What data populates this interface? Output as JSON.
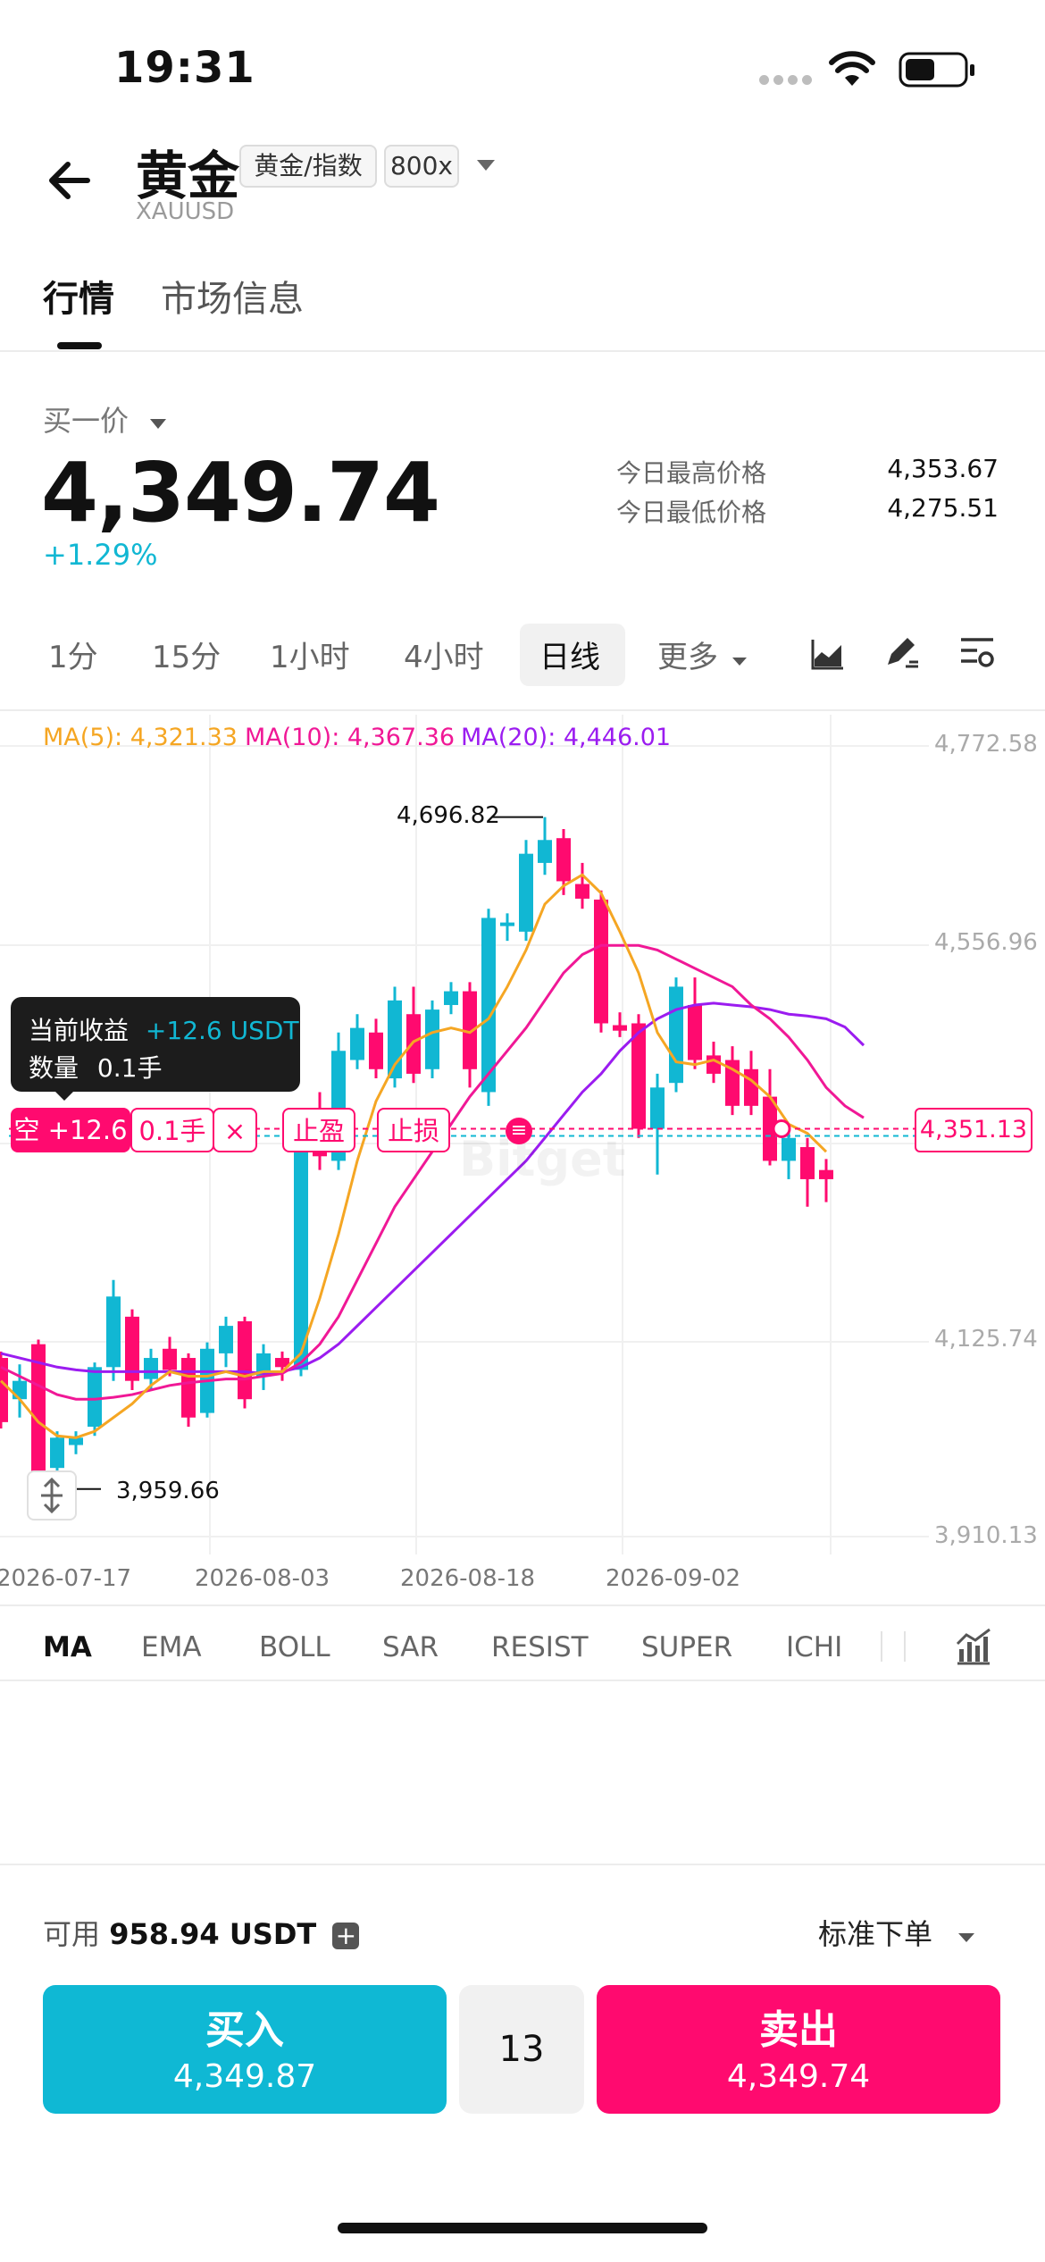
{
  "status_bar": {
    "time": "19:31"
  },
  "header": {
    "title": "黄金",
    "tag_category": "黄金/指数",
    "tag_leverage": "800x",
    "symbol": "XAUUSD"
  },
  "tabs": [
    {
      "label": "行情",
      "active": true
    },
    {
      "label": "市场信息",
      "active": false
    }
  ],
  "price": {
    "label": "买一价",
    "value": "4,349.74",
    "change": "+1.29%",
    "high_label": "今日最高价格",
    "high": "4,353.67",
    "low_label": "今日最低价格",
    "low": "4,275.51"
  },
  "intervals": [
    "1分",
    "15分",
    "1小时",
    "4小时",
    "日线",
    "更多"
  ],
  "active_interval": "日线",
  "toolbar_icons": [
    "chart-type-icon",
    "draw-tool-icon",
    "indicator-settings-icon"
  ],
  "colors": {
    "up": "#11b7d3",
    "down": "#ff0a6f",
    "ma5": "#f5a623",
    "ma10": "#f01896",
    "ma20": "#9b1cf0"
  },
  "chart": {
    "ma5_label": "MA(5): 4,321.33",
    "ma10_label": "MA(10): 4,367.36",
    "ma20_label": "MA(20): 4,446.01",
    "y_ticks": [
      "4,772.58",
      "4,556.96",
      "4,125.74",
      "3,910.13"
    ],
    "x_ticks": [
      "2026-07-17",
      "2026-08-03",
      "2026-08-18",
      "2026-09-02"
    ],
    "high_marker": "4,696.82",
    "low_marker": "3,959.66",
    "current_price_tag": "4,351.13",
    "watermark": "Bitget"
  },
  "chart_data": {
    "type": "candlestick",
    "ylim": [
      3910.13,
      4772.58
    ],
    "candles": [
      {
        "o": 4105,
        "c": 4035,
        "h": 4112,
        "l": 4028
      },
      {
        "o": 4060,
        "c": 4080,
        "h": 4098,
        "l": 4040
      },
      {
        "o": 4120,
        "c": 3975,
        "h": 4125,
        "l": 3962
      },
      {
        "o": 3985,
        "c": 4018,
        "h": 4025,
        "l": 3965
      },
      {
        "o": 4010,
        "c": 4018,
        "h": 4025,
        "l": 4000
      },
      {
        "o": 4030,
        "c": 4095,
        "h": 4100,
        "l": 4020
      },
      {
        "o": 4095,
        "c": 4172,
        "h": 4190,
        "l": 4080
      },
      {
        "o": 4150,
        "c": 4080,
        "h": 4158,
        "l": 4070
      },
      {
        "o": 4082,
        "c": 4105,
        "h": 4115,
        "l": 4070
      },
      {
        "o": 4115,
        "c": 4092,
        "h": 4128,
        "l": 4085
      },
      {
        "o": 4105,
        "c": 4040,
        "h": 4110,
        "l": 4030
      },
      {
        "o": 4045,
        "c": 4115,
        "h": 4122,
        "l": 4040
      },
      {
        "o": 4110,
        "c": 4140,
        "h": 4150,
        "l": 4095
      },
      {
        "o": 4145,
        "c": 4060,
        "h": 4150,
        "l": 4050
      },
      {
        "o": 4085,
        "c": 4110,
        "h": 4120,
        "l": 4070
      },
      {
        "o": 4105,
        "c": 4095,
        "h": 4112,
        "l": 4080
      },
      {
        "o": 4092,
        "c": 4345,
        "h": 4360,
        "l": 4085
      },
      {
        "o": 4345,
        "c": 4325,
        "h": 4395,
        "l": 4310
      },
      {
        "o": 4320,
        "c": 4440,
        "h": 4460,
        "l": 4310
      },
      {
        "o": 4430,
        "c": 4465,
        "h": 4480,
        "l": 4420
      },
      {
        "o": 4460,
        "c": 4420,
        "h": 4475,
        "l": 4410
      },
      {
        "o": 4410,
        "c": 4495,
        "h": 4510,
        "l": 4400
      },
      {
        "o": 4480,
        "c": 4415,
        "h": 4510,
        "l": 4405
      },
      {
        "o": 4420,
        "c": 4485,
        "h": 4495,
        "l": 4410
      },
      {
        "o": 4490,
        "c": 4505,
        "h": 4515,
        "l": 4480
      },
      {
        "o": 4505,
        "c": 4420,
        "h": 4515,
        "l": 4400
      },
      {
        "o": 4395,
        "c": 4585,
        "h": 4595,
        "l": 4380
      },
      {
        "o": 4580,
        "c": 4580,
        "h": 4590,
        "l": 4560
      },
      {
        "o": 4570,
        "c": 4655,
        "h": 4670,
        "l": 4560
      },
      {
        "o": 4645,
        "c": 4670,
        "h": 4695,
        "l": 4632
      },
      {
        "o": 4672,
        "c": 4625,
        "h": 4682,
        "l": 4610
      },
      {
        "o": 4622,
        "c": 4606,
        "h": 4645,
        "l": 4595
      },
      {
        "o": 4605,
        "c": 4470,
        "h": 4615,
        "l": 4460
      },
      {
        "o": 4468,
        "c": 4462,
        "h": 4482,
        "l": 4455
      },
      {
        "o": 4470,
        "c": 4355,
        "h": 4480,
        "l": 4345
      },
      {
        "o": 4355,
        "c": 4400,
        "h": 4415,
        "l": 4305
      },
      {
        "o": 4405,
        "c": 4510,
        "h": 4520,
        "l": 4395
      },
      {
        "o": 4490,
        "c": 4430,
        "h": 4520,
        "l": 4420
      },
      {
        "o": 4435,
        "c": 4415,
        "h": 4450,
        "l": 4405
      },
      {
        "o": 4430,
        "c": 4380,
        "h": 4445,
        "l": 4370
      },
      {
        "o": 4420,
        "c": 4380,
        "h": 4440,
        "l": 4370
      },
      {
        "o": 4390,
        "c": 4320,
        "h": 4420,
        "l": 4315
      },
      {
        "o": 4320,
        "c": 4345,
        "h": 4360,
        "l": 4300
      },
      {
        "o": 4335,
        "c": 4300,
        "h": 4345,
        "l": 4270
      },
      {
        "o": 4310,
        "c": 4300,
        "h": 4322,
        "l": 4275
      }
    ],
    "ma5": [
      [
        0,
        4080
      ],
      [
        1,
        4060
      ],
      [
        2,
        4035
      ],
      [
        3,
        4020
      ],
      [
        4,
        4018
      ],
      [
        5,
        4025
      ],
      [
        6,
        4040
      ],
      [
        7,
        4055
      ],
      [
        8,
        4075
      ],
      [
        9,
        4090
      ],
      [
        10,
        4085
      ],
      [
        11,
        4085
      ],
      [
        12,
        4090
      ],
      [
        13,
        4085
      ],
      [
        14,
        4090
      ],
      [
        15,
        4090
      ],
      [
        16,
        4110
      ],
      [
        17,
        4170
      ],
      [
        18,
        4240
      ],
      [
        19,
        4320
      ],
      [
        20,
        4385
      ],
      [
        21,
        4425
      ],
      [
        22,
        4450
      ],
      [
        23,
        4460
      ],
      [
        24,
        4465
      ],
      [
        25,
        4460
      ],
      [
        26,
        4475
      ],
      [
        27,
        4510
      ],
      [
        28,
        4550
      ],
      [
        29,
        4600
      ],
      [
        30,
        4620
      ],
      [
        31,
        4632
      ],
      [
        32,
        4612
      ],
      [
        33,
        4570
      ],
      [
        34,
        4525
      ],
      [
        35,
        4460
      ],
      [
        36,
        4428
      ],
      [
        37,
        4425
      ],
      [
        38,
        4430
      ],
      [
        39,
        4420
      ],
      [
        40,
        4408
      ],
      [
        41,
        4390
      ],
      [
        42,
        4360
      ],
      [
        43,
        4350
      ],
      [
        44,
        4330
      ]
    ],
    "ma10": [
      [
        0,
        4095
      ],
      [
        1,
        4085
      ],
      [
        2,
        4075
      ],
      [
        3,
        4065
      ],
      [
        4,
        4060
      ],
      [
        5,
        4060
      ],
      [
        6,
        4062
      ],
      [
        7,
        4065
      ],
      [
        8,
        4070
      ],
      [
        9,
        4075
      ],
      [
        10,
        4078
      ],
      [
        11,
        4080
      ],
      [
        12,
        4082
      ],
      [
        13,
        4082
      ],
      [
        14,
        4085
      ],
      [
        15,
        4088
      ],
      [
        16,
        4100
      ],
      [
        17,
        4120
      ],
      [
        18,
        4150
      ],
      [
        19,
        4190
      ],
      [
        20,
        4230
      ],
      [
        21,
        4270
      ],
      [
        22,
        4300
      ],
      [
        23,
        4330
      ],
      [
        24,
        4360
      ],
      [
        25,
        4390
      ],
      [
        26,
        4415
      ],
      [
        27,
        4440
      ],
      [
        28,
        4465
      ],
      [
        29,
        4495
      ],
      [
        30,
        4525
      ],
      [
        31,
        4545
      ],
      [
        32,
        4555
      ],
      [
        33,
        4555
      ],
      [
        34,
        4555
      ],
      [
        35,
        4550
      ],
      [
        36,
        4540
      ],
      [
        37,
        4530
      ],
      [
        38,
        4520
      ],
      [
        39,
        4510
      ],
      [
        40,
        4490
      ],
      [
        41,
        4475
      ],
      [
        42,
        4455
      ],
      [
        43,
        4430
      ],
      [
        44,
        4400
      ],
      [
        45,
        4380
      ],
      [
        46,
        4367
      ]
    ],
    "ma20": [
      [
        0,
        4110
      ],
      [
        1,
        4105
      ],
      [
        2,
        4100
      ],
      [
        3,
        4095
      ],
      [
        4,
        4092
      ],
      [
        5,
        4090
      ],
      [
        6,
        4090
      ],
      [
        7,
        4090
      ],
      [
        8,
        4090
      ],
      [
        9,
        4090
      ],
      [
        10,
        4090
      ],
      [
        11,
        4090
      ],
      [
        12,
        4090
      ],
      [
        13,
        4090
      ],
      [
        14,
        4088
      ],
      [
        15,
        4090
      ],
      [
        16,
        4095
      ],
      [
        17,
        4105
      ],
      [
        18,
        4120
      ],
      [
        19,
        4140
      ],
      [
        20,
        4160
      ],
      [
        21,
        4180
      ],
      [
        22,
        4200
      ],
      [
        23,
        4220
      ],
      [
        24,
        4240
      ],
      [
        25,
        4260
      ],
      [
        26,
        4280
      ],
      [
        27,
        4300
      ],
      [
        28,
        4320
      ],
      [
        29,
        4345
      ],
      [
        30,
        4370
      ],
      [
        31,
        4395
      ],
      [
        32,
        4415
      ],
      [
        33,
        4440
      ],
      [
        34,
        4460
      ],
      [
        35,
        4475
      ],
      [
        36,
        4485
      ],
      [
        37,
        4490
      ],
      [
        38,
        4492
      ],
      [
        39,
        4490
      ],
      [
        40,
        4488
      ],
      [
        41,
        4485
      ],
      [
        42,
        4480
      ],
      [
        43,
        4478
      ],
      [
        44,
        4475
      ],
      [
        45,
        4466
      ],
      [
        46,
        4446
      ]
    ],
    "current_price": 4351.13
  },
  "position": {
    "pnl_title": "当前收益",
    "pnl_value": "+12.6 USDT",
    "qty_label": "数量",
    "qty_value": "0.1手",
    "short_label": "空 +12.6",
    "size": "0.1手",
    "close": "×",
    "tp": "止盈",
    "sl": "止损",
    "drag": "≡"
  },
  "indicators": [
    "MA",
    "EMA",
    "BOLL",
    "SAR",
    "RESIST",
    "SUPER",
    "ICHI"
  ],
  "active_indicator": "MA",
  "order": {
    "available_label": "可用",
    "available_value": "958.94 USDT",
    "order_type": "标准下单",
    "buy_label": "买入",
    "buy_price": "4,349.87",
    "quantity": "13",
    "sell_label": "卖出",
    "sell_price": "4,349.74"
  }
}
